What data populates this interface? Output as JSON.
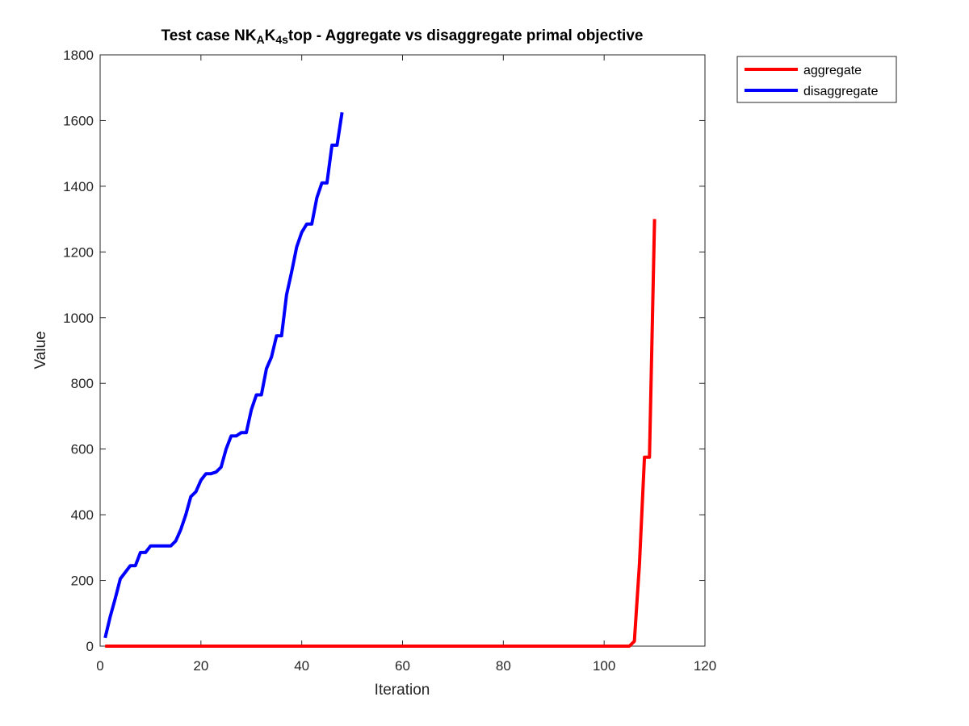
{
  "chart_data": {
    "type": "line",
    "title": {
      "parts": [
        {
          "text": "Test case NK",
          "sub": false
        },
        {
          "text": "A",
          "sub": true
        },
        {
          "text": "K",
          "sub": false
        },
        {
          "text": "4s",
          "sub": true
        },
        {
          "text": "top - Aggregate vs disaggregate primal objective",
          "sub": false
        }
      ]
    },
    "xlabel": "Iteration",
    "ylabel": "Value",
    "xlim": [
      0,
      120
    ],
    "ylim": [
      0,
      1800
    ],
    "xticks": [
      0,
      20,
      40,
      60,
      80,
      100,
      120
    ],
    "yticks": [
      0,
      200,
      400,
      600,
      800,
      1000,
      1200,
      1400,
      1600,
      1800
    ],
    "grid": false,
    "legend_position": "outside top-right",
    "series": [
      {
        "name": "aggregate",
        "color": "#ff0000",
        "x": [
          1,
          105,
          106,
          107,
          108,
          109,
          110
        ],
        "y": [
          0,
          0,
          15,
          250,
          575,
          575,
          1300
        ]
      },
      {
        "name": "disaggregate",
        "color": "#0000ff",
        "x": [
          1,
          2,
          3,
          4,
          5,
          6,
          7,
          8,
          9,
          10,
          11,
          12,
          13,
          14,
          15,
          16,
          17,
          18,
          19,
          20,
          21,
          22,
          23,
          24,
          25,
          26,
          27,
          28,
          29,
          30,
          31,
          32,
          33,
          34,
          35,
          36,
          37,
          38,
          39,
          40,
          41,
          42,
          43,
          44,
          45,
          46,
          47,
          48
        ],
        "y": [
          25,
          90,
          145,
          205,
          225,
          245,
          245,
          285,
          285,
          305,
          305,
          305,
          305,
          305,
          320,
          355,
          400,
          455,
          470,
          505,
          525,
          525,
          530,
          545,
          600,
          640,
          640,
          650,
          650,
          720,
          765,
          765,
          845,
          880,
          945,
          945,
          1070,
          1140,
          1215,
          1260,
          1285,
          1285,
          1365,
          1410,
          1410,
          1525,
          1525,
          1625
        ]
      }
    ]
  }
}
